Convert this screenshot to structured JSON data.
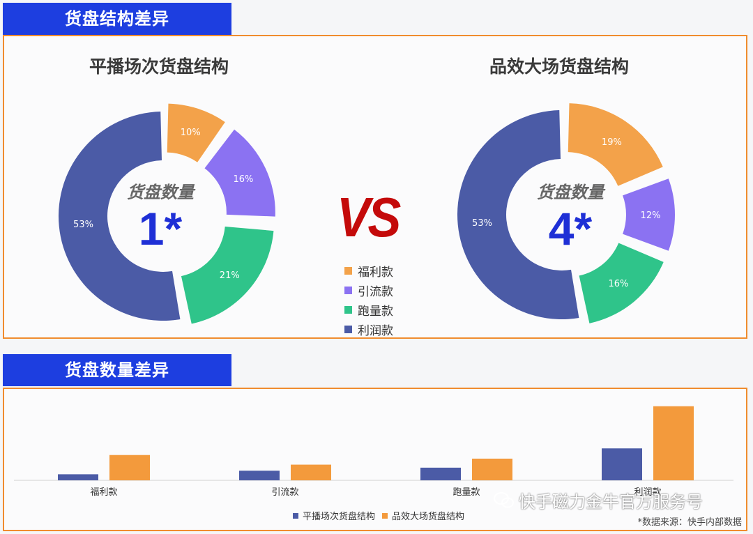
{
  "section1": {
    "title": "货盘结构差异"
  },
  "section2": {
    "title": "货盘数量差异"
  },
  "vs": "VS",
  "center": {
    "label": "货盘数量"
  },
  "watermark": "快手磁力金牛官方服务号",
  "footnote": "*数据来源：快手内部数据",
  "chart_data": [
    {
      "type": "pie",
      "title": "平播场次货盘结构",
      "center_value": "1*",
      "slices": [
        {
          "label": "福利款",
          "value": 10,
          "text": "10%"
        },
        {
          "label": "引流款",
          "value": 16,
          "text": "16%"
        },
        {
          "label": "跑量款",
          "value": 21,
          "text": "21%"
        },
        {
          "label": "利润款",
          "value": 53,
          "text": "53%"
        }
      ],
      "legend": [
        "福利款",
        "引流款",
        "跑量款",
        "利润款"
      ],
      "colors": {
        "福利款": "#f3a24a",
        "引流款": "#8b72f2",
        "跑量款": "#2fc48a",
        "利润款": "#4b5ba6"
      }
    },
    {
      "type": "pie",
      "title": "品效大场货盘结构",
      "center_value": "4*",
      "slices": [
        {
          "label": "福利款",
          "value": 19,
          "text": "19%"
        },
        {
          "label": "引流款",
          "value": 12,
          "text": "12%"
        },
        {
          "label": "跑量款",
          "value": 16,
          "text": "16%"
        },
        {
          "label": "利润款",
          "value": 53,
          "text": "53%"
        }
      ]
    },
    {
      "type": "bar",
      "categories": [
        "福利款",
        "引流款",
        "跑量款",
        "利润款"
      ],
      "series": [
        {
          "name": "平播场次货盘结构",
          "values": [
            1,
            1.6,
            2.1,
            5.3
          ],
          "color": "#4b5ba6"
        },
        {
          "name": "品效大场货盘结构",
          "values": [
            4.2,
            2.6,
            3.6,
            12.3
          ],
          "color": "#f39a3c"
        }
      ],
      "ylim": [
        0,
        12.5
      ],
      "grid": false,
      "legend_position": "bottom"
    }
  ]
}
